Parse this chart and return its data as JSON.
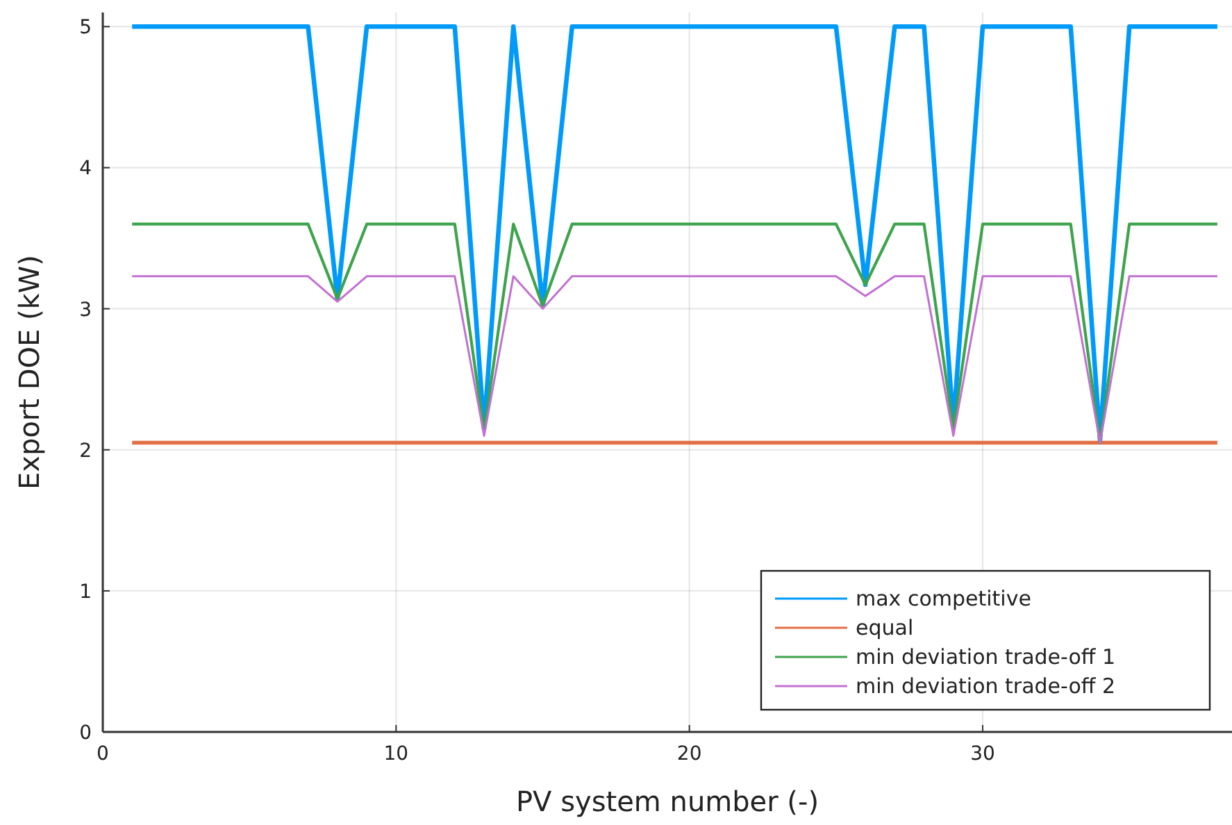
{
  "chart_data": {
    "type": "line",
    "xlabel": "PV system number (-)",
    "ylabel": "Export DOE (kW)",
    "x": [
      1,
      2,
      3,
      4,
      5,
      6,
      7,
      8,
      9,
      10,
      11,
      12,
      13,
      14,
      15,
      16,
      17,
      18,
      19,
      20,
      21,
      22,
      23,
      24,
      25,
      26,
      27,
      28,
      29,
      30,
      31,
      32,
      33,
      34,
      35,
      36,
      37,
      38
    ],
    "xlim": [
      0,
      38.5
    ],
    "xticks": [
      0,
      10,
      20,
      30
    ],
    "ylim": [
      0,
      5.1
    ],
    "yticks": [
      0,
      1,
      2,
      3,
      4,
      5
    ],
    "grid": true,
    "legend": "bottom right",
    "line_style": "solid",
    "marker": "none",
    "series": [
      {
        "name": "max competitive",
        "color": "#009af9",
        "values": [
          5,
          5,
          5,
          5,
          5,
          5,
          5,
          3.07,
          5,
          5,
          5,
          5,
          2.15,
          5,
          3.02,
          5,
          5,
          5,
          5,
          5,
          5,
          5,
          5,
          5,
          5,
          3.17,
          5,
          5,
          2.18,
          5,
          5,
          5,
          5,
          2.07,
          5,
          5,
          5,
          5
        ]
      },
      {
        "name": "equal",
        "color": "#e26f46",
        "values": [
          2.05,
          2.05,
          2.05,
          2.05,
          2.05,
          2.05,
          2.05,
          2.05,
          2.05,
          2.05,
          2.05,
          2.05,
          2.05,
          2.05,
          2.05,
          2.05,
          2.05,
          2.05,
          2.05,
          2.05,
          2.05,
          2.05,
          2.05,
          2.05,
          2.05,
          2.05,
          2.05,
          2.05,
          2.05,
          2.05,
          2.05,
          2.05,
          2.05,
          2.05,
          2.05,
          2.05,
          2.05,
          2.05
        ]
      },
      {
        "name": "min deviation trade-off 1",
        "color": "#3da44d",
        "values": [
          3.6,
          3.6,
          3.6,
          3.6,
          3.6,
          3.6,
          3.6,
          3.07,
          3.6,
          3.6,
          3.6,
          3.6,
          2.13,
          3.6,
          3.02,
          3.6,
          3.6,
          3.6,
          3.6,
          3.6,
          3.6,
          3.6,
          3.6,
          3.6,
          3.6,
          3.17,
          3.6,
          3.6,
          2.15,
          3.6,
          3.6,
          3.6,
          3.6,
          2.05,
          3.6,
          3.6,
          3.6,
          3.6
        ]
      },
      {
        "name": "min deviation trade-off 2",
        "color": "#c271d2",
        "values": [
          3.23,
          3.23,
          3.23,
          3.23,
          3.23,
          3.23,
          3.23,
          3.05,
          3.23,
          3.23,
          3.23,
          3.23,
          2.1,
          3.23,
          3.0,
          3.23,
          3.23,
          3.23,
          3.23,
          3.23,
          3.23,
          3.23,
          3.23,
          3.23,
          3.23,
          3.09,
          3.23,
          3.23,
          2.1,
          3.23,
          3.23,
          3.23,
          3.23,
          2.05,
          3.23,
          3.23,
          3.23,
          3.23
        ]
      }
    ]
  }
}
